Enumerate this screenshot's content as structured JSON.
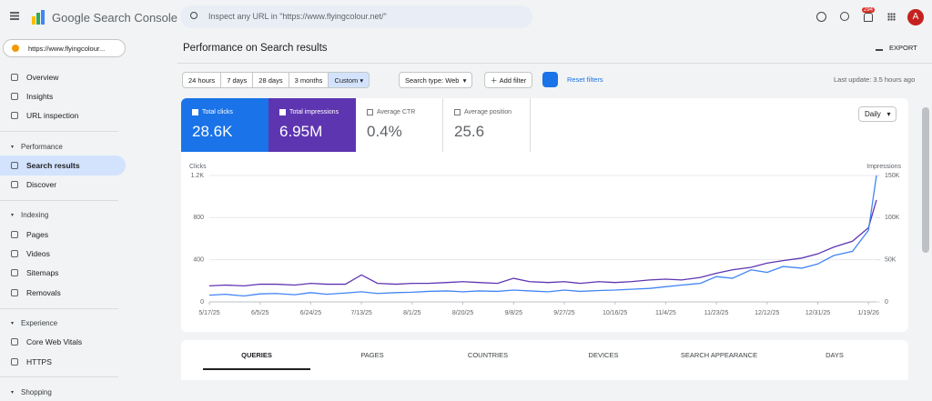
{
  "header": {
    "product": "Google Search Console",
    "search_placeholder": "Inspect any URL in \"https://www.flyingcolour.net/\"",
    "notifications": "294",
    "avatar": "A"
  },
  "property": "https://www.flyingcolour...",
  "nav": {
    "top": [
      "Overview",
      "Insights",
      "URL inspection"
    ],
    "groups": [
      {
        "title": "Performance",
        "items": [
          "Search results",
          "Discover"
        ]
      },
      {
        "title": "Indexing",
        "items": [
          "Pages",
          "Videos",
          "Sitemaps",
          "Removals"
        ]
      },
      {
        "title": "Experience",
        "items": [
          "Core Web Vitals",
          "HTTPS"
        ]
      },
      {
        "title": "Shopping",
        "items": []
      }
    ]
  },
  "page": {
    "title": "Performance on Search results",
    "export": "EXPORT",
    "date_ranges": [
      "24 hours",
      "7 days",
      "28 days",
      "3 months",
      "Custom"
    ],
    "search_type": "Search type: Web",
    "add_filter": "Add filter",
    "reset_filters": "Reset filters",
    "last_update": "Last update: 3.5 hours ago"
  },
  "metrics": [
    {
      "label": "Total clicks",
      "value": "28.6K"
    },
    {
      "label": "Total impressions",
      "value": "6.95M"
    },
    {
      "label": "Average CTR",
      "value": "0.4%"
    },
    {
      "label": "Average position",
      "value": "25.6"
    }
  ],
  "granularity": "Daily",
  "chart_data": {
    "type": "line",
    "y_label": "Clicks",
    "y2_label": "Impressions",
    "x": [
      "5/17/25",
      "5/23/25",
      "5/30/25",
      "6/5/25",
      "6/11/25",
      "6/18/25",
      "6/24/25",
      "6/30/25",
      "7/7/25",
      "7/13/25",
      "7/19/25",
      "7/26/25",
      "8/1/25",
      "8/7/25",
      "8/14/25",
      "8/20/25",
      "8/26/25",
      "9/2/25",
      "9/8/25",
      "9/14/25",
      "9/21/25",
      "9/27/25",
      "10/3/25",
      "10/10/25",
      "10/16/25",
      "10/22/25",
      "10/29/25",
      "11/4/25",
      "11/10/25",
      "11/17/25",
      "11/23/25",
      "11/29/25",
      "12/6/25",
      "12/12/25",
      "12/18/25",
      "12/25/25",
      "12/31/25",
      "1/6/26",
      "1/13/26",
      "1/19/26",
      "1/22/26"
    ],
    "series": [
      {
        "color": "#4285f4",
        "values": [
          64,
          72,
          56,
          76,
          80,
          68,
          88,
          72,
          84,
          96,
          80,
          88,
          92,
          100,
          104,
          96,
          104,
          100,
          112,
          104,
          96,
          112,
          100,
          108,
          112,
          120,
          128,
          144,
          160,
          176,
          240,
          224,
          304,
          280,
          336,
          320,
          360,
          440,
          480,
          680,
          1200
        ]
      },
      {
        "color": "#5e35b1",
        "axis": "y2",
        "values": [
          19000,
          20000,
          19000,
          21000,
          21000,
          20000,
          22000,
          21000,
          21000,
          32000,
          22000,
          21000,
          22000,
          22000,
          23000,
          24000,
          23000,
          22000,
          28000,
          24000,
          23000,
          24000,
          22000,
          24000,
          23000,
          24000,
          26000,
          27000,
          26000,
          29000,
          34000,
          38000,
          41000,
          46000,
          49000,
          52000,
          57000,
          65000,
          72000,
          88000,
          121000
        ]
      }
    ],
    "ylim": [
      0,
      1200
    ],
    "yticks": [
      0,
      400,
      800,
      {
        "value": 1200,
        "label": "1.2K"
      }
    ],
    "y2lim": [
      0,
      150000
    ],
    "y2ticks": [
      0,
      {
        "value": 50000,
        "label": "50K"
      },
      {
        "value": 100000,
        "label": "100K"
      },
      {
        "value": 150000,
        "label": "150K"
      }
    ],
    "xticks": [
      "5/17/25",
      "6/5/25",
      "6/24/25",
      "7/13/25",
      "8/1/25",
      "8/20/25",
      "9/8/25",
      "9/27/25",
      "10/16/25",
      "11/4/25",
      "11/23/25",
      "12/12/25",
      "12/31/25",
      "1/19/26"
    ],
    "grid": true
  },
  "tabs": [
    "QUERIES",
    "PAGES",
    "COUNTRIES",
    "DEVICES",
    "SEARCH APPEARANCE",
    "DAYS"
  ]
}
